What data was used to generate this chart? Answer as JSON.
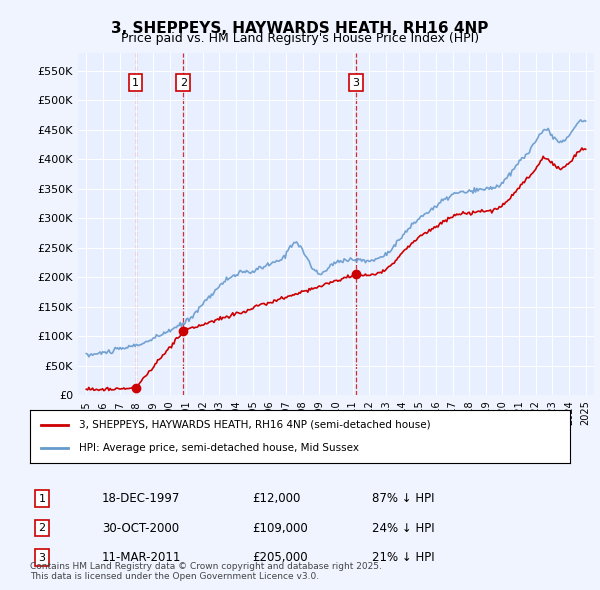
{
  "title": "3, SHEPPEYS, HAYWARDS HEATH, RH16 4NP",
  "subtitle": "Price paid vs. HM Land Registry's House Price Index (HPI)",
  "background_color": "#f0f4ff",
  "plot_bg_color": "#e8eeff",
  "ylim": [
    0,
    580000
  ],
  "yticks": [
    0,
    50000,
    100000,
    150000,
    200000,
    250000,
    300000,
    350000,
    400000,
    450000,
    500000,
    550000
  ],
  "ytick_labels": [
    "£0",
    "£50K",
    "£100K",
    "£150K",
    "£200K",
    "£250K",
    "£300K",
    "£350K",
    "£400K",
    "£450K",
    "£500K",
    "£550K"
  ],
  "sale_dates": [
    "1997-12-18",
    "2000-10-30",
    "2011-03-11"
  ],
  "sale_prices": [
    12000,
    109000,
    205000
  ],
  "sale_labels": [
    "1",
    "2",
    "3"
  ],
  "legend_property": "3, SHEPPEYS, HAYWARDS HEATH, RH16 4NP (semi-detached house)",
  "legend_hpi": "HPI: Average price, semi-detached house, Mid Sussex",
  "table_entries": [
    {
      "label": "1",
      "date": "18-DEC-1997",
      "price": "£12,000",
      "pct": "87% ↓ HPI"
    },
    {
      "label": "2",
      "date": "30-OCT-2000",
      "price": "£109,000",
      "pct": "24% ↓ HPI"
    },
    {
      "label": "3",
      "date": "11-MAR-2011",
      "price": "£205,000",
      "pct": "21% ↓ HPI"
    }
  ],
  "footer": "Contains HM Land Registry data © Crown copyright and database right 2025.\nThis data is licensed under the Open Government Licence v3.0.",
  "line_color_property": "#cc0000",
  "line_color_hpi": "#6699cc",
  "vline_color": "#cc0000",
  "marker_color": "#cc0000"
}
